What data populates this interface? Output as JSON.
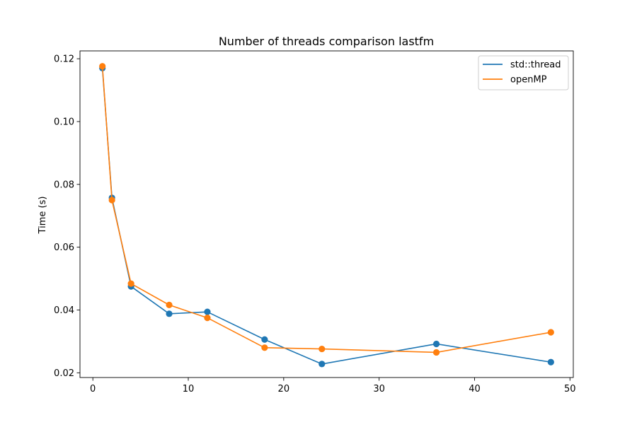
{
  "chart_data": {
    "type": "line",
    "title": "Number of threads comparison lastfm",
    "xlabel": "",
    "ylabel": "Time (s)",
    "xlim": [
      -1.35,
      50.35
    ],
    "ylim": [
      0.0185,
      0.1225
    ],
    "xticks": [
      0,
      10,
      20,
      30,
      40,
      50
    ],
    "xtick_labels": [
      "0",
      "10",
      "20",
      "30",
      "40",
      "50"
    ],
    "yticks": [
      0.02,
      0.04,
      0.06,
      0.08,
      0.1,
      0.12
    ],
    "ytick_labels": [
      "0.02",
      "0.04",
      "0.06",
      "0.08",
      "0.10",
      "0.12"
    ],
    "grid": false,
    "legend_position": "top-right",
    "markers": true,
    "series": [
      {
        "name": "std::thread",
        "color": "#1f77b4",
        "x": [
          1,
          2,
          4,
          8,
          12,
          18,
          24,
          36,
          48
        ],
        "y": [
          0.117,
          0.0757,
          0.0475,
          0.0388,
          0.0394,
          0.0306,
          0.0228,
          0.0292,
          0.0234
        ]
      },
      {
        "name": "openMP",
        "color": "#ff7f0e",
        "x": [
          1,
          2,
          4,
          8,
          12,
          18,
          24,
          36,
          48
        ],
        "y": [
          0.1176,
          0.075,
          0.0484,
          0.0416,
          0.0375,
          0.028,
          0.0276,
          0.0265,
          0.0329
        ]
      }
    ]
  }
}
